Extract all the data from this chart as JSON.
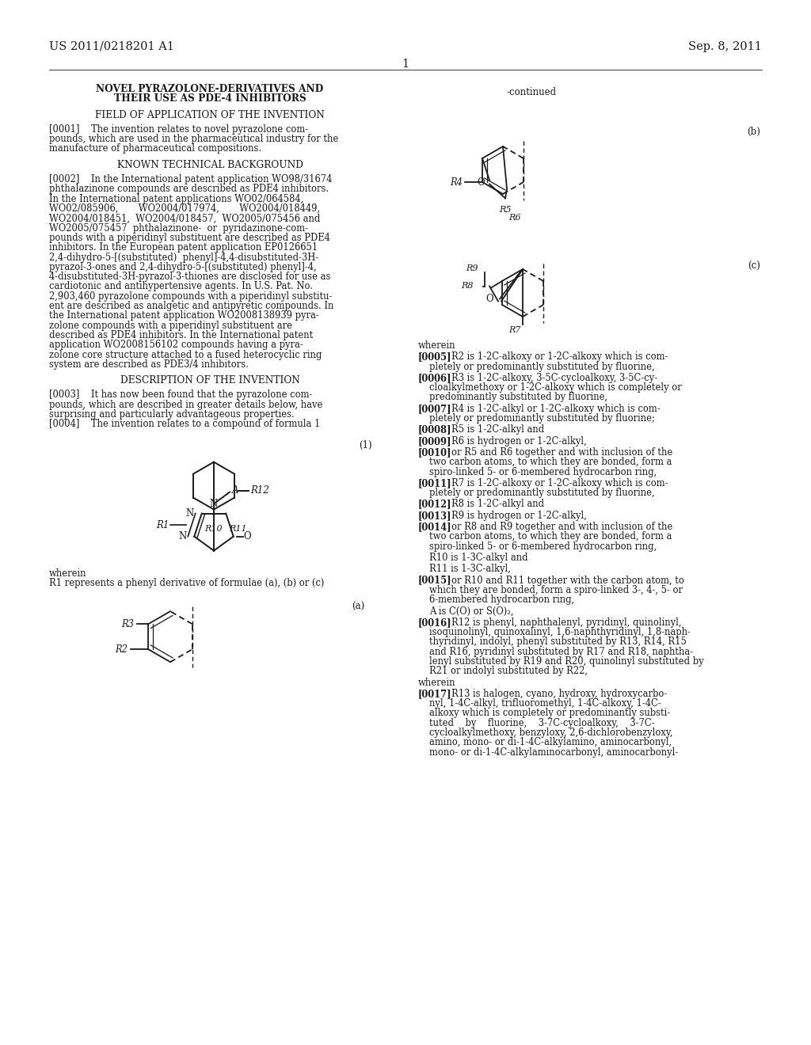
{
  "header_left": "US 2011/0218201 A1",
  "header_right": "Sep. 8, 2011",
  "page_number": "1",
  "bg": "#ffffff",
  "tc": "#1a1a1a",
  "title1": "NOVEL PYRAZOLONE-DERIVATIVES AND",
  "title2": "THEIR USE AS PDE-4 INHIBITORS",
  "s1": "FIELD OF APPLICATION OF THE INVENTION",
  "p0001": "[0001]    The invention relates to novel pyrazolone com-\npounds, which are used in the pharmaceutical industry for the\nmanufacture of pharmaceutical compositions.",
  "s2": "KNOWN TECHNICAL BACKGROUND",
  "p0002_lines": [
    "[0002]    In the International patent application WO98/31674",
    "phthalazinone compounds are described as PDE4 inhibitors.",
    "In the International patent applications WO02/064584,",
    "WO02/085906,       WO2004/017974,       WO2004/018449,",
    "WO2004/018451,  WO2004/018457,  WO2005/075456 and",
    "WO2005/075457  phthalazinone-  or  pyridazinone-com-",
    "pounds with a piperidinyl substituent are described as PDE4",
    "inhibitors. In the European patent application EP0126651",
    "2,4-dihydro-5-[(substituted)  phenyl]-4,4-disubstituted-3H-",
    "pyrazol-3-ones and 2,4-dihydro-5-[(substituted) phenyl]-4,",
    "4-disubstituted-3H-pyrazol-3-thiones are disclosed for use as",
    "cardiotonic and antihypertensive agents. In U.S. Pat. No.",
    "2,903,460 pyrazolone compounds with a piperidinyl substitu-",
    "ent are described as analgetic and antipyretic compounds. In",
    "the International patent application WO2008138939 pyra-",
    "zolone compounds with a piperidinyl substituent are",
    "described as PDE4 inhibitors. In the International patent",
    "application WO2008156102 compounds having a pyra-",
    "zolone core structure attached to a fused heterocyclic ring",
    "system are described as PDE3/4 inhibitors."
  ],
  "s3": "DESCRIPTION OF THE INVENTION",
  "p0003_lines": [
    "[0003]    It has now been found that the pyrazolone com-",
    "pounds, which are described in greater details below, have",
    "surprising and particularly advantageous properties."
  ],
  "p0004": "[0004]    The invention relates to a compound of formula 1",
  "wherein1": "wherein",
  "wherein1b": "R1 represents a phenyl derivative of formulae (a), (b) or (c)",
  "continued": "-continued",
  "wherein2": "wherein",
  "rp": [
    {
      "bold": true,
      "tag": "[0005]",
      "rest": "R2 is 1-2C-alkoxy or 1-2C-alkoxy which is com-\npletely or predominantly substituted by fluorine,"
    },
    {
      "bold": true,
      "tag": "[0006]",
      "rest": "R3 is 1-2C-alkoxy, 3-5C-cycloalkoxy, 3-5C-cy-\ncloalkylmethoxy or 1-2C-alkoxy which is completely or\npredominantly substituted by fluorine,"
    },
    {
      "bold": true,
      "tag": "[0007]",
      "rest": "R4 is 1-2C-alkyl or 1-2C-alkoxy which is com-\npletely or predominantly substituted by fluorine;"
    },
    {
      "bold": true,
      "tag": "[0008]",
      "rest": "R5 is 1-2C-alkyl and"
    },
    {
      "bold": true,
      "tag": "[0009]",
      "rest": "R6 is hydrogen or 1-2C-alkyl,"
    },
    {
      "bold": true,
      "tag": "[0010]",
      "rest": "or R5 and R6 together and with inclusion of the\ntwo carbon atoms, to which they are bonded, form a\nspiro-linked 5- or 6-membered hydrocarbon ring,"
    },
    {
      "bold": true,
      "tag": "[0011]",
      "rest": "R7 is 1-2C-alkoxy or 1-2C-alkoxy which is com-\npletely or predominantly substituted by fluorine,"
    },
    {
      "bold": true,
      "tag": "[0012]",
      "rest": "R8 is 1-2C-alkyl and"
    },
    {
      "bold": true,
      "tag": "[0013]",
      "rest": "R9 is hydrogen or 1-2C-alkyl,"
    },
    {
      "bold": true,
      "tag": "[0014]",
      "rest": "or R8 and R9 together and with inclusion of the\ntwo carbon atoms, to which they are bonded, form a\nspiro-linked 5- or 6-membered hydrocarbon ring,"
    },
    {
      "bold": false,
      "tag": "",
      "rest": "R10 is 1-3C-alkyl and"
    },
    {
      "bold": false,
      "tag": "",
      "rest": "R11 is 1-3C-alkyl,"
    },
    {
      "bold": true,
      "tag": "[0015]",
      "rest": "or R10 and R11 together with the carbon atom, to\nwhich they are bonded, form a spiro-linked 3-, 4-, 5- or\n6-membered hydrocarbon ring,"
    },
    {
      "bold": false,
      "tag": "",
      "rest": "A is C(O) or S(O)₂,"
    },
    {
      "bold": true,
      "tag": "[0016]",
      "rest": "R12 is phenyl, naphthalenyl, pyridinyl, quinolinyl,\nisoquinolinyl, quinoxalinyl, 1,6-naphthyridinyl, 1,8-naph-\nthyridinyl, indolyl, phenyl substituted by R13, R14, R15\nand R16, pyridinyl substituted by R17 and R18, naphtha-\nlenyl substituted by R19 and R20, quinolinyl substituted by\nR21 or indolyl substituted by R22,"
    },
    {
      "bold": false,
      "tag": "",
      "rest": "wherein"
    },
    {
      "bold": true,
      "tag": "[0017]",
      "rest": "R13 is halogen, cyano, hydroxy, hydroxycarbo-\nnyl, 1-4C-alkyl, trifluoromethyl, 1-4C-alkoxy, 1-4C-\nalkoxy which is completely or predominantly substi-\ntuted    by    fluorine,    3-7C-cycloalkoxy,    3-7C-\ncycloalkylmethoxy, benzyloxy, 2,6-dichlorobenzyloxy,\namino, mono- or di-1-4C-alkylamino, aminocarbonyl,\nmono- or di-1-4C-alkylaminocarbonyl, aminocarbonyl-"
    }
  ]
}
